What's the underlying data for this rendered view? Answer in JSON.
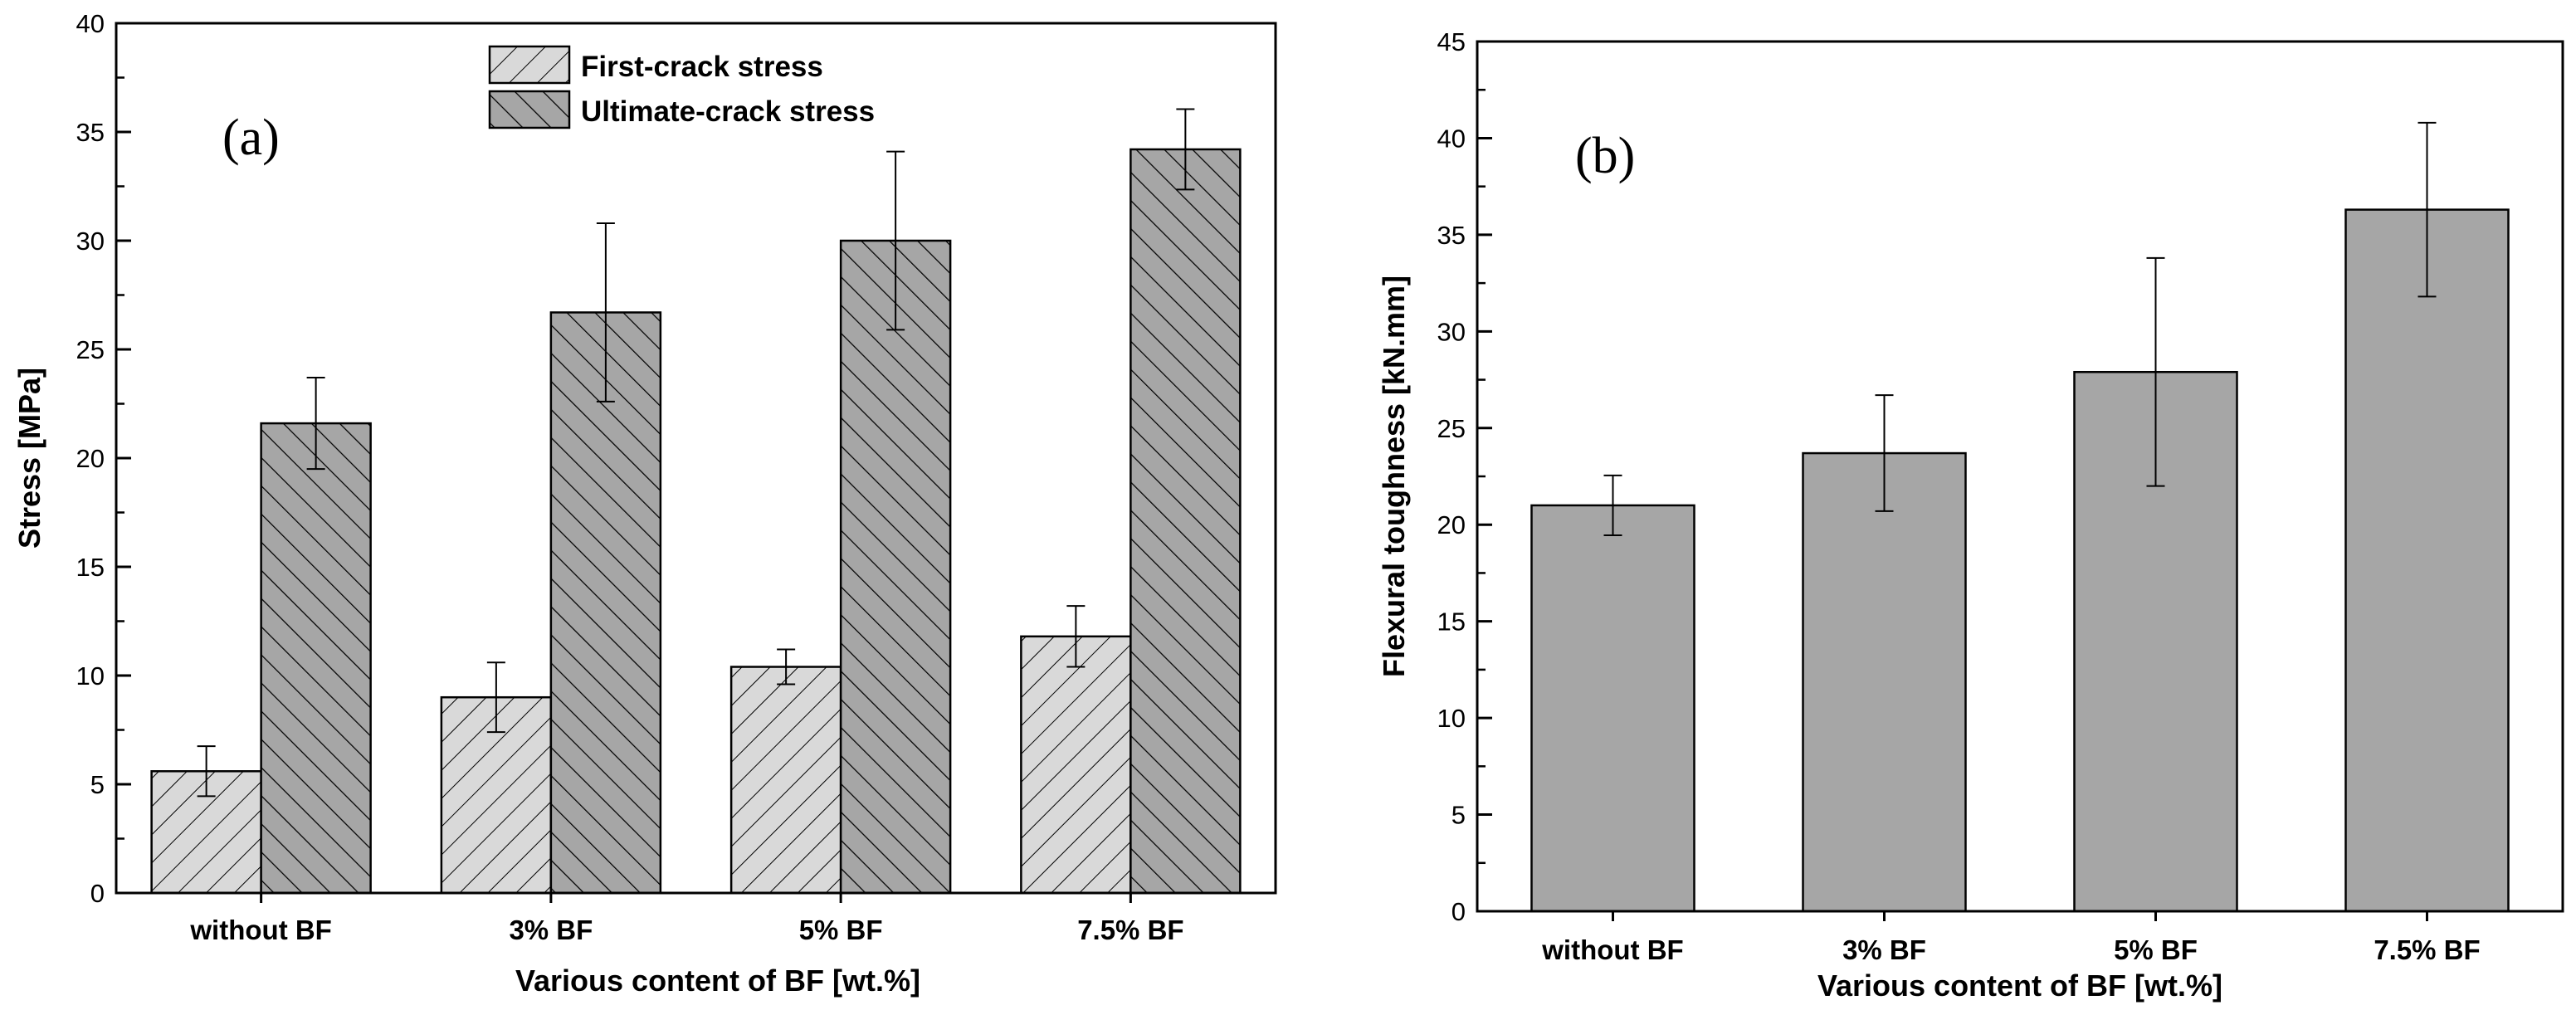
{
  "chart_data": [
    {
      "type": "bar",
      "panel_label": "(a)",
      "categories": [
        "without BF",
        "3% BF",
        "5% BF",
        "7.5% BF"
      ],
      "series": [
        {
          "name": "First-crack stress",
          "values": [
            5.6,
            9.0,
            10.4,
            11.8
          ],
          "error": [
            1.15,
            1.6,
            0.8,
            1.4
          ],
          "pattern": "light-hatch-forward",
          "color": "#d9d9d9"
        },
        {
          "name": "Ultimate-crack stress",
          "values": [
            21.6,
            26.7,
            30.0,
            34.2
          ],
          "error": [
            2.1,
            4.1,
            4.1,
            1.85
          ],
          "pattern": "dark-hatch-backward",
          "color": "#a6a6a6"
        }
      ],
      "xlabel": "Various content of BF [wt.%]",
      "ylabel": "Stress [MPa]",
      "ylim": [
        0,
        40
      ],
      "yticks": [
        0,
        5,
        10,
        15,
        20,
        25,
        30,
        35,
        40
      ],
      "grid": false,
      "legend": "top-center"
    },
    {
      "type": "bar",
      "panel_label": "(b)",
      "categories": [
        "without BF",
        "3% BF",
        "5% BF",
        "7.5% BF"
      ],
      "series": [
        {
          "values": [
            21.0,
            23.7,
            27.9,
            36.3
          ],
          "error": [
            1.55,
            3.0,
            5.9,
            4.5
          ],
          "color": "#a6a6a6"
        }
      ],
      "xlabel": "Various content of BF [wt.%]",
      "ylabel": "Flexural toughness [kN.mm]",
      "ylim": [
        0,
        45
      ],
      "yticks": [
        0,
        5,
        10,
        15,
        20,
        25,
        30,
        35,
        40,
        45
      ],
      "grid": false
    }
  ]
}
